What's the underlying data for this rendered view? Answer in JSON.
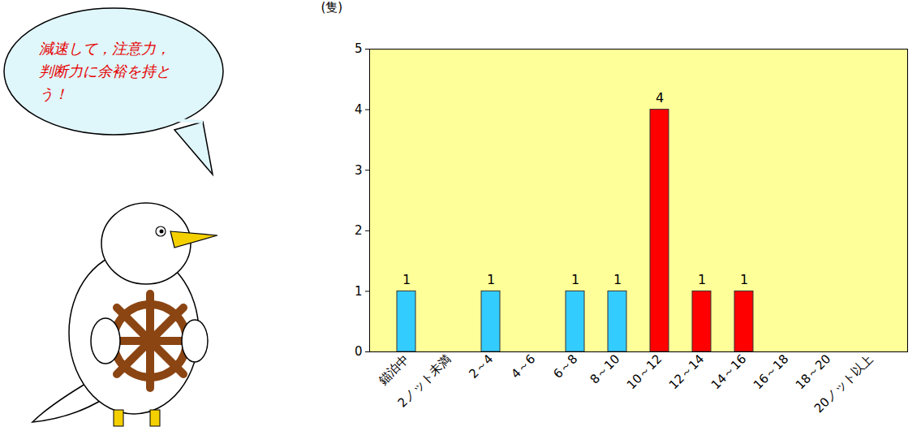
{
  "chart_data": {
    "type": "bar",
    "ylabel": "(隻)",
    "annotation": "減速して，注意力，判断力に余裕を持とう！",
    "categories": [
      "錨泊中",
      "2ノット未満",
      "2～4",
      "4～6",
      "6～8",
      "8～10",
      "10～12",
      "12～14",
      "14～16",
      "16～18",
      "18～20",
      "20ノット以上"
    ],
    "values": [
      1,
      0,
      1,
      0,
      1,
      1,
      4,
      1,
      1,
      0,
      0,
      0
    ],
    "colors": [
      "#33ccff",
      "#33ccff",
      "#33ccff",
      "#33ccff",
      "#33ccff",
      "#33ccff",
      "#ff0000",
      "#ff0000",
      "#ff0000",
      "#ff0000",
      "#ff0000",
      "#ff0000"
    ],
    "ylim": [
      0,
      5
    ],
    "yticks": [
      0,
      1,
      2,
      3,
      4,
      5
    ],
    "grid": false,
    "data_labels": true
  }
}
